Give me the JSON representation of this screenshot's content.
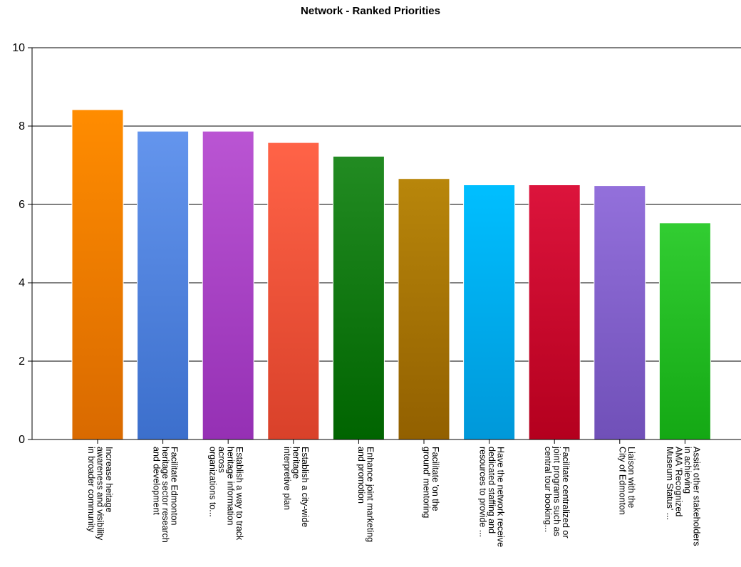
{
  "chart_data": {
    "type": "bar",
    "title": "Network - Ranked Priorities",
    "xlabel": "",
    "ylabel": "",
    "ylim": [
      0,
      10
    ],
    "yticks": [
      0,
      2,
      4,
      6,
      8,
      10
    ],
    "grid": true,
    "categories": [
      [
        "Increase heitage",
        "awareness and visibility",
        "in broader community"
      ],
      [
        "Facilitate Edmonton",
        "heritage sector research",
        "and development"
      ],
      [
        "Establish a way to track",
        "heritage information",
        "across",
        "organizations to..."
      ],
      [
        "Establish a city-wide",
        "heritage",
        "interpretive plan"
      ],
      [
        "Enhance joint marketing",
        "and promotion"
      ],
      [
        "Facilitate 'on the",
        "ground' mentoring"
      ],
      [
        "Have the network receive",
        "dedicated staffing and",
        "resources to provide ..."
      ],
      [
        "Facilitate centralized or",
        "joint programs such as",
        "central tour booking..."
      ],
      [
        "Liaison with the",
        "City of Edmonton"
      ],
      [
        "Assist other stakeholders",
        "in achieving",
        "AMA 'Recognized",
        "Museum Status' ..."
      ]
    ],
    "values": [
      8.42,
      7.87,
      7.87,
      7.58,
      7.23,
      6.66,
      6.5,
      6.5,
      6.48,
      5.53
    ],
    "colors": [
      [
        "#ff8c00",
        "#d96a00"
      ],
      [
        "#6495ed",
        "#3c6fcc"
      ],
      [
        "#ba55d3",
        "#9530b4"
      ],
      [
        "#ff6347",
        "#d9412a"
      ],
      [
        "#228b22",
        "#006400"
      ],
      [
        "#b8860b",
        "#926000"
      ],
      [
        "#00bfff",
        "#0098d9"
      ],
      [
        "#dc143c",
        "#b4001e"
      ],
      [
        "#9370db",
        "#7050b8"
      ],
      [
        "#32cd32",
        "#14a814"
      ]
    ]
  }
}
